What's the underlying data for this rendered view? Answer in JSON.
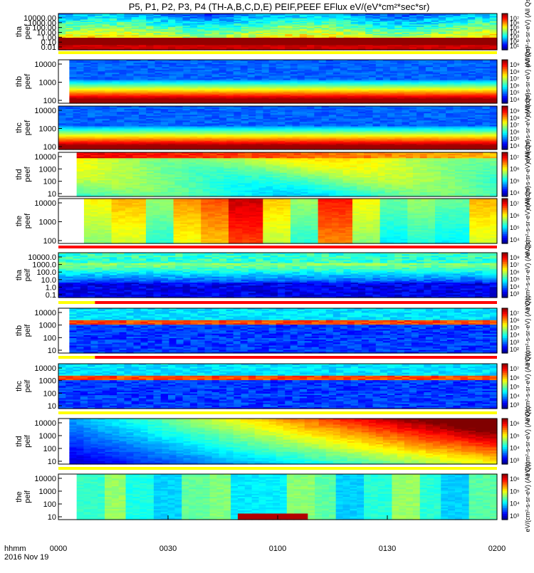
{
  "title": "P5, P1, P2, P3, P4 (TH-A,B,C,D,E) PEIF,PEEF EFlux eV/(eV*cm²*sec*sr)",
  "colors": {
    "background": "#ffffff",
    "flag_red": "#ff0000",
    "flag_yellow": "#ffff00"
  },
  "chart_data": {
    "type": "heatmap",
    "xaxis": {
      "tick_labels": [
        "0000",
        "0030",
        "0100",
        "0130",
        "0200"
      ],
      "minutes": [
        0,
        30,
        60,
        90,
        120
      ],
      "corner_label_1": "hhmm",
      "corner_label_2": "2016 Nov 19"
    },
    "panels": [
      {
        "name": "tha peef",
        "ylabel_1": "tha",
        "ylabel_2": "peef",
        "ytick_labels": [
          "10000.00",
          "1000.00",
          "100.00",
          "10.00",
          "1.00",
          "0.10",
          "0.01"
        ],
        "cbar_labels": [
          "10⁷",
          "10⁶",
          "10⁵",
          "10⁴",
          "10³",
          "10²",
          "10¹"
        ],
        "cbar_title": "eV/(cm²-s-sr-eV) (All Qs)",
        "data_start_minute": 0,
        "flag": "yellow",
        "profile": "tha_e"
      },
      {
        "name": "thb peef",
        "ylabel_1": "thb",
        "ylabel_2": "peef",
        "ytick_labels": [
          "10000",
          "1000",
          "100"
        ],
        "cbar_labels": [
          "10⁹",
          "10⁸",
          "10⁷",
          "10⁶",
          "10⁵",
          "10⁴"
        ],
        "cbar_title": "eV/(cm²-s-sr-eV) (All Qs)",
        "data_start_minute": 3,
        "flag": "none",
        "profile": "thb_e"
      },
      {
        "name": "thc peef",
        "ylabel_1": "thc",
        "ylabel_2": "peef",
        "ytick_labels": [
          "10000",
          "1000",
          "100"
        ],
        "cbar_labels": [
          "10⁹",
          "10⁸",
          "10⁷",
          "10⁶",
          "10⁵",
          "10⁴"
        ],
        "cbar_title": "eV/(cm²-s-sr-eV) (All Qs)",
        "data_start_minute": 0,
        "flag": "none",
        "profile": "thb_e"
      },
      {
        "name": "thd peef",
        "ylabel_1": "thd",
        "ylabel_2": "peef",
        "ytick_labels": [
          "10000",
          "1000",
          "100",
          "10"
        ],
        "cbar_labels": [
          "10⁷",
          "10⁶",
          "10⁵",
          "10⁴"
        ],
        "cbar_title": "eV/(cm²-s-sr-eV) (All Qs)",
        "data_start_minute": 5,
        "flag": "none",
        "profile": "thd_e"
      },
      {
        "name": "the peef",
        "ylabel_1": "the",
        "ylabel_2": "peef",
        "ytick_labels": [
          "10000",
          "1000",
          "100"
        ],
        "cbar_labels": [
          "10⁷",
          "10⁶",
          "10⁵",
          "10⁴"
        ],
        "cbar_title": "eV/(cm²-s-sr-eV) (All Qs)",
        "data_start_minute": 7,
        "flag": "red",
        "profile": "the_e"
      },
      {
        "name": "tha peif",
        "ylabel_1": "tha",
        "ylabel_2": "peif",
        "ytick_labels": [
          "10000.0",
          "1000.0",
          "100.0",
          "10.0",
          "1.0",
          "0.1"
        ],
        "cbar_labels": [
          "10⁸",
          "10⁷",
          "10⁶",
          "10⁵",
          "10⁴",
          "10³"
        ],
        "cbar_title": "eV/(cm²-s-sr-eV) (All Qs)",
        "data_start_minute": 0,
        "flag": "yellow-red",
        "profile": "tha_i"
      },
      {
        "name": "thb peif",
        "ylabel_1": "thb",
        "ylabel_2": "peif",
        "ytick_labels": [
          "10000",
          "1000",
          "100",
          "10"
        ],
        "cbar_labels": [
          "10⁷",
          "10⁶",
          "10⁵",
          "10⁴",
          "10³",
          "10²"
        ],
        "cbar_title": "eV/(cm²-s-sr-eV) (All Qs)",
        "data_start_minute": 3,
        "flag": "yellow-red",
        "profile": "thb_i"
      },
      {
        "name": "thc peif",
        "ylabel_1": "thc",
        "ylabel_2": "peif",
        "ytick_labels": [
          "10000",
          "1000",
          "100",
          "10"
        ],
        "cbar_labels": [
          "10⁷",
          "10⁶",
          "10⁵",
          "10⁴",
          "10³"
        ],
        "cbar_title": "eV/(cm²-s-sr-eV) (All Qs)",
        "data_start_minute": 0,
        "flag": "yellow",
        "profile": "thb_i"
      },
      {
        "name": "thd peif",
        "ylabel_1": "thd",
        "ylabel_2": "peif",
        "ytick_labels": [
          "10000",
          "1000",
          "100",
          "10"
        ],
        "cbar_labels": [
          "10⁶",
          "10⁵",
          "10⁴",
          "10³"
        ],
        "cbar_title": "eV/(cm²-s-sr-eV) (All Qs)",
        "data_start_minute": 3,
        "flag": "yellow",
        "profile": "thd_i"
      },
      {
        "name": "the peif",
        "ylabel_1": "the",
        "ylabel_2": "peif",
        "ytick_labels": [
          "10000",
          "1000",
          "100",
          "10"
        ],
        "cbar_labels": [
          "10⁶",
          "10⁵",
          "10⁴",
          "10³"
        ],
        "cbar_title": "eV/(cm²-s-sr-eV) (All Qs)",
        "data_start_minute": 5,
        "flag": "none",
        "profile": "the_i"
      }
    ]
  }
}
